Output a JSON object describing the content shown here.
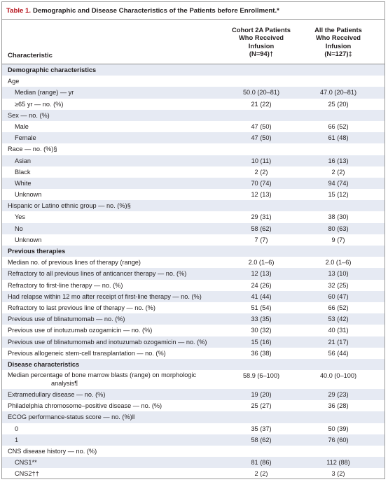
{
  "title": {
    "number": "Table 1.",
    "text": "Demographic and Disease Characteristics of the Patients before Enrollment.*"
  },
  "header": {
    "characteristic": "Characteristic",
    "col1": [
      "Cohort 2A Patients",
      "Who Received",
      "Infusion",
      "(N=94)†"
    ],
    "col2": [
      "All the Patients",
      "Who Received",
      "Infusion",
      "(N=127)‡"
    ]
  },
  "rows": [
    {
      "label": "Demographic characteristics",
      "type": "sec",
      "v1": "",
      "v2": ""
    },
    {
      "label": "Age",
      "type": "plain",
      "v1": "",
      "v2": ""
    },
    {
      "label": "Median (range) — yr",
      "type": "ind",
      "v1": "50.0 (20–81)",
      "v2": "47.0 (20–81)"
    },
    {
      "label": "≥65 yr — no. (%)",
      "type": "ind",
      "v1": "21 (22)",
      "v2": "25 (20)"
    },
    {
      "label": "Sex — no. (%)",
      "type": "plain",
      "v1": "",
      "v2": ""
    },
    {
      "label": "Male",
      "type": "ind",
      "v1": "47 (50)",
      "v2": "66 (52)"
    },
    {
      "label": "Female",
      "type": "ind",
      "v1": "47 (50)",
      "v2": "61 (48)"
    },
    {
      "label": "Race — no. (%)§",
      "type": "plain",
      "v1": "",
      "v2": ""
    },
    {
      "label": "Asian",
      "type": "ind",
      "v1": "10 (11)",
      "v2": "16 (13)"
    },
    {
      "label": "Black",
      "type": "ind",
      "v1": "2 (2)",
      "v2": "2 (2)"
    },
    {
      "label": "White",
      "type": "ind",
      "v1": "70 (74)",
      "v2": "94 (74)"
    },
    {
      "label": "Unknown",
      "type": "ind",
      "v1": "12 (13)",
      "v2": "15 (12)"
    },
    {
      "label": "Hispanic or Latino ethnic group — no. (%)§",
      "type": "plain",
      "v1": "",
      "v2": ""
    },
    {
      "label": "Yes",
      "type": "ind",
      "v1": "29 (31)",
      "v2": "38 (30)"
    },
    {
      "label": "No",
      "type": "ind",
      "v1": "58 (62)",
      "v2": "80 (63)"
    },
    {
      "label": "Unknown",
      "type": "ind",
      "v1": "7 (7)",
      "v2": "9 (7)"
    },
    {
      "label": "Previous therapies",
      "type": "sec",
      "v1": "",
      "v2": ""
    },
    {
      "label": "Median no. of previous lines of therapy (range)",
      "type": "plain",
      "v1": "2.0 (1–6)",
      "v2": "2.0 (1–6)"
    },
    {
      "label": "Refractory to all previous lines of anticancer therapy — no. (%)",
      "type": "plain",
      "v1": "12 (13)",
      "v2": "13 (10)"
    },
    {
      "label": "Refractory to first-line therapy — no. (%)",
      "type": "plain",
      "v1": "24 (26)",
      "v2": "32 (25)"
    },
    {
      "label": "Had relapse within 12 mo after receipt of first-line therapy — no. (%)",
      "type": "plain",
      "v1": "41 (44)",
      "v2": "60 (47)"
    },
    {
      "label": "Refractory to last previous line of therapy — no. (%)",
      "type": "plain",
      "v1": "51 (54)",
      "v2": "66 (52)"
    },
    {
      "label": "Previous use of blinatumomab — no. (%)",
      "type": "plain",
      "v1": "33 (35)",
      "v2": "53 (42)"
    },
    {
      "label": "Previous use of inotuzumab ozogamicin — no. (%)",
      "type": "plain",
      "v1": "30 (32)",
      "v2": "40 (31)"
    },
    {
      "label": "Previous use of blinatumomab and inotuzumab ozogamicin — no. (%)",
      "type": "plain",
      "v1": "15 (16)",
      "v2": "21 (17)"
    },
    {
      "label": "Previous allogeneic stem-cell transplantation — no. (%)",
      "type": "plain",
      "v1": "36 (38)",
      "v2": "56 (44)"
    },
    {
      "label": "Disease characteristics",
      "type": "sec",
      "v1": "",
      "v2": ""
    },
    {
      "label": "Median percentage of bone marrow blasts (range) on morphologic",
      "label2": "analysis¶",
      "type": "tall",
      "v1": "58.9 (6–100)",
      "v2": "40.0 (0–100)"
    },
    {
      "label": "Extramedullary disease — no. (%)",
      "type": "plain",
      "v1": "19 (20)",
      "v2": "29 (23)"
    },
    {
      "label": "Philadelphia chromosome–positive disease — no. (%)",
      "type": "plain",
      "v1": "25 (27)",
      "v2": "36 (28)"
    },
    {
      "label": "ECOG performance-status score — no. (%)‖",
      "type": "plain",
      "v1": "",
      "v2": ""
    },
    {
      "label": "0",
      "type": "ind",
      "v1": "35 (37)",
      "v2": "50 (39)"
    },
    {
      "label": "1",
      "type": "ind",
      "v1": "58 (62)",
      "v2": "76 (60)"
    },
    {
      "label": "CNS disease history — no. (%)",
      "type": "plain",
      "v1": "",
      "v2": ""
    },
    {
      "label": "CNS1**",
      "type": "ind",
      "v1": "81 (86)",
      "v2": "112 (88)"
    },
    {
      "label": "CNS2††",
      "type": "ind",
      "v1": "2 (2)",
      "v2": "3 (2)"
    }
  ],
  "colors": {
    "title_number": "#b5121b",
    "row_shade": "#e6eaf3",
    "border": "#9a9a9a"
  }
}
